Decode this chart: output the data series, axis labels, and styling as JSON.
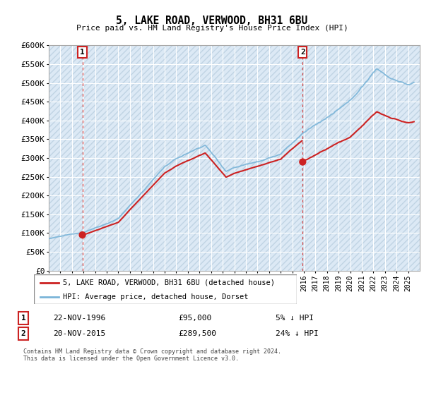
{
  "title": "5, LAKE ROAD, VERWOOD, BH31 6BU",
  "subtitle": "Price paid vs. HM Land Registry's House Price Index (HPI)",
  "xlim_start": 1994,
  "xlim_end": 2026,
  "ylim": [
    0,
    600000
  ],
  "yticks": [
    0,
    50000,
    100000,
    150000,
    200000,
    250000,
    300000,
    350000,
    400000,
    450000,
    500000,
    550000,
    600000
  ],
  "ytick_labels": [
    "£0",
    "£50K",
    "£100K",
    "£150K",
    "£200K",
    "£250K",
    "£300K",
    "£350K",
    "£400K",
    "£450K",
    "£500K",
    "£550K",
    "£600K"
  ],
  "xtick_years": [
    1994,
    1995,
    1996,
    1997,
    1998,
    1999,
    2000,
    2001,
    2002,
    2003,
    2004,
    2005,
    2006,
    2007,
    2008,
    2009,
    2010,
    2011,
    2012,
    2013,
    2014,
    2015,
    2016,
    2017,
    2018,
    2019,
    2020,
    2021,
    2022,
    2023,
    2024,
    2025
  ],
  "purchase1_date": 1996.9,
  "purchase1_price": 95000,
  "purchase2_date": 2015.9,
  "purchase2_price": 289500,
  "hpi_color": "#7ab4d8",
  "price_color": "#cc2222",
  "bg_color": "#dce9f5",
  "hatch_color": "#b8cfe0",
  "grid_color": "#aec6d8",
  "legend_label1": "5, LAKE ROAD, VERWOOD, BH31 6BU (detached house)",
  "legend_label2": "HPI: Average price, detached house, Dorset",
  "table_row1": [
    "1",
    "22-NOV-1996",
    "£95,000",
    "5% ↓ HPI"
  ],
  "table_row2": [
    "2",
    "20-NOV-2015",
    "£289,500",
    "24% ↓ HPI"
  ],
  "footer": "Contains HM Land Registry data © Crown copyright and database right 2024.\nThis data is licensed under the Open Government Licence v3.0."
}
